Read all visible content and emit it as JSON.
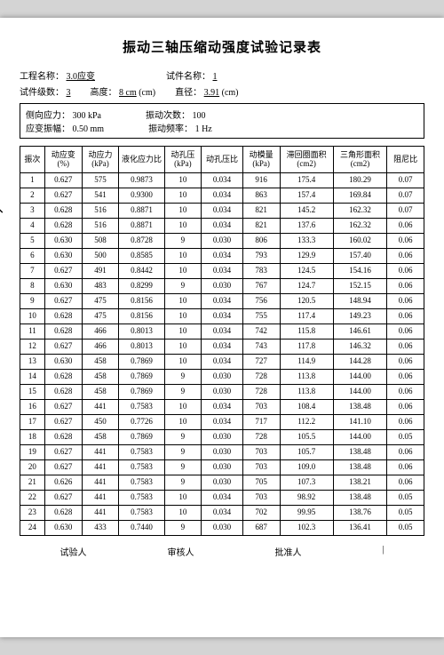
{
  "title": "振动三轴压缩动强度试验记录表",
  "meta": {
    "projectLabel": "工程名称：",
    "projectValue": "3.0应变",
    "sampleNameLabel": "试件名称：",
    "sampleNameValue": "1",
    "sampleCountLabel": "试件级数：",
    "sampleCountValue": "3",
    "heightLabel": "高度：",
    "heightValue": "8 cm",
    "heightUnit": "(cm)",
    "diameterLabel": "直径：",
    "diameterValue": "3.91",
    "diameterUnit": "(cm)"
  },
  "params": {
    "lateralStressLabel": "侧向应力：",
    "lateralStressValue": "300 kPa",
    "vibCountLabel": "振动次数：",
    "vibCountValue": "100",
    "strainAmpLabel": "应变振幅：",
    "strainAmpValue": "0.50 mm",
    "vibFreqLabel": "振动频率：",
    "vibFreqValue": "1 Hz"
  },
  "columns": [
    "振次",
    "动应变\n(%)",
    "动应力\n(kPa)",
    "液化应力比",
    "动孔压\n(kPa)",
    "动孔压比",
    "动模量\n(kPa)",
    "滞回圈面积\n(cm2)",
    "三角形面积\n(cm2)",
    "阻尼比"
  ],
  "colWidths": [
    "6%",
    "9%",
    "9%",
    "11%",
    "9%",
    "10%",
    "9%",
    "13%",
    "13%",
    "9%"
  ],
  "rows": [
    [
      "1",
      "0.627",
      "575",
      "0.9873",
      "10",
      "0.034",
      "916",
      "175.4",
      "180.29",
      "0.07"
    ],
    [
      "2",
      "0.627",
      "541",
      "0.9300",
      "10",
      "0.034",
      "863",
      "157.4",
      "169.84",
      "0.07"
    ],
    [
      "3",
      "0.628",
      "516",
      "0.8871",
      "10",
      "0.034",
      "821",
      "145.2",
      "162.32",
      "0.07"
    ],
    [
      "4",
      "0.628",
      "516",
      "0.8871",
      "10",
      "0.034",
      "821",
      "137.6",
      "162.32",
      "0.06"
    ],
    [
      "5",
      "0.630",
      "508",
      "0.8728",
      "9",
      "0.030",
      "806",
      "133.3",
      "160.02",
      "0.06"
    ],
    [
      "6",
      "0.630",
      "500",
      "0.8585",
      "10",
      "0.034",
      "793",
      "129.9",
      "157.40",
      "0.06"
    ],
    [
      "7",
      "0.627",
      "491",
      "0.8442",
      "10",
      "0.034",
      "783",
      "124.5",
      "154.16",
      "0.06"
    ],
    [
      "8",
      "0.630",
      "483",
      "0.8299",
      "9",
      "0.030",
      "767",
      "124.7",
      "152.15",
      "0.06"
    ],
    [
      "9",
      "0.627",
      "475",
      "0.8156",
      "10",
      "0.034",
      "756",
      "120.5",
      "148.94",
      "0.06"
    ],
    [
      "10",
      "0.628",
      "475",
      "0.8156",
      "10",
      "0.034",
      "755",
      "117.4",
      "149.23",
      "0.06"
    ],
    [
      "11",
      "0.628",
      "466",
      "0.8013",
      "10",
      "0.034",
      "742",
      "115.8",
      "146.61",
      "0.06"
    ],
    [
      "12",
      "0.627",
      "466",
      "0.8013",
      "10",
      "0.034",
      "743",
      "117.8",
      "146.32",
      "0.06"
    ],
    [
      "13",
      "0.630",
      "458",
      "0.7869",
      "10",
      "0.034",
      "727",
      "114.9",
      "144.28",
      "0.06"
    ],
    [
      "14",
      "0.628",
      "458",
      "0.7869",
      "9",
      "0.030",
      "728",
      "113.8",
      "144.00",
      "0.06"
    ],
    [
      "15",
      "0.628",
      "458",
      "0.7869",
      "9",
      "0.030",
      "728",
      "113.8",
      "144.00",
      "0.06"
    ],
    [
      "16",
      "0.627",
      "441",
      "0.7583",
      "10",
      "0.034",
      "703",
      "108.4",
      "138.48",
      "0.06"
    ],
    [
      "17",
      "0.627",
      "450",
      "0.7726",
      "10",
      "0.034",
      "717",
      "112.2",
      "141.10",
      "0.06"
    ],
    [
      "18",
      "0.628",
      "458",
      "0.7869",
      "9",
      "0.030",
      "728",
      "105.5",
      "144.00",
      "0.05"
    ],
    [
      "19",
      "0.627",
      "441",
      "0.7583",
      "9",
      "0.030",
      "703",
      "105.7",
      "138.48",
      "0.06"
    ],
    [
      "20",
      "0.627",
      "441",
      "0.7583",
      "9",
      "0.030",
      "703",
      "109.0",
      "138.48",
      "0.06"
    ],
    [
      "21",
      "0.626",
      "441",
      "0.7583",
      "9",
      "0.030",
      "705",
      "107.3",
      "138.21",
      "0.06"
    ],
    [
      "22",
      "0.627",
      "441",
      "0.7583",
      "10",
      "0.034",
      "703",
      "98.92",
      "138.48",
      "0.05"
    ],
    [
      "23",
      "0.628",
      "441",
      "0.7583",
      "10",
      "0.034",
      "702",
      "99.95",
      "138.76",
      "0.05"
    ],
    [
      "24",
      "0.630",
      "433",
      "0.7440",
      "9",
      "0.030",
      "687",
      "102.3",
      "136.41",
      "0.05"
    ]
  ],
  "footer": {
    "tester": "试验人",
    "reviewer": "审核人",
    "approver": "批准人",
    "pageSep": "|"
  }
}
